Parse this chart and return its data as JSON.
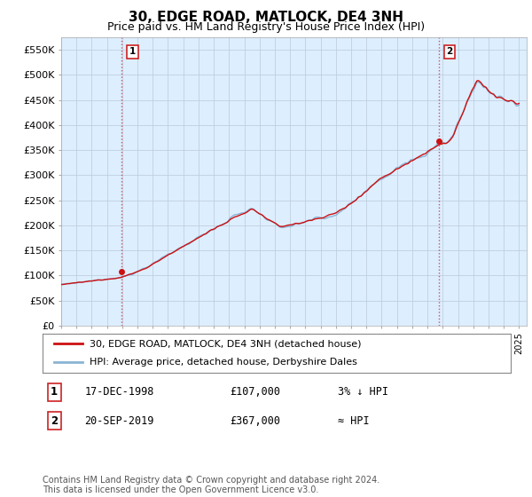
{
  "title": "30, EDGE ROAD, MATLOCK, DE4 3NH",
  "subtitle": "Price paid vs. HM Land Registry's House Price Index (HPI)",
  "title_fontsize": 11,
  "subtitle_fontsize": 9,
  "ylim": [
    0,
    575000
  ],
  "yticks": [
    0,
    50000,
    100000,
    150000,
    200000,
    250000,
    300000,
    350000,
    400000,
    450000,
    500000,
    550000
  ],
  "ytick_labels": [
    "£0",
    "£50K",
    "£100K",
    "£150K",
    "£200K",
    "£250K",
    "£300K",
    "£350K",
    "£400K",
    "£450K",
    "£500K",
    "£550K"
  ],
  "hpi_color": "#8ab4d4",
  "price_color": "#cc1111",
  "plot_bg_color": "#ddeeff",
  "marker1_date": 1998.958,
  "marker1_price": 107000,
  "marker2_date": 2019.722,
  "marker2_price": 367000,
  "legend_entry1": "30, EDGE ROAD, MATLOCK, DE4 3NH (detached house)",
  "legend_entry2": "HPI: Average price, detached house, Derbyshire Dales",
  "table_row1": [
    "1",
    "17-DEC-1998",
    "£107,000",
    "3% ↓ HPI"
  ],
  "table_row2": [
    "2",
    "20-SEP-2019",
    "£367,000",
    "≈ HPI"
  ],
  "footer": "Contains HM Land Registry data © Crown copyright and database right 2024.\nThis data is licensed under the Open Government Licence v3.0.",
  "grid_color": "#c0cfe0",
  "bg_color": "#ffffff"
}
